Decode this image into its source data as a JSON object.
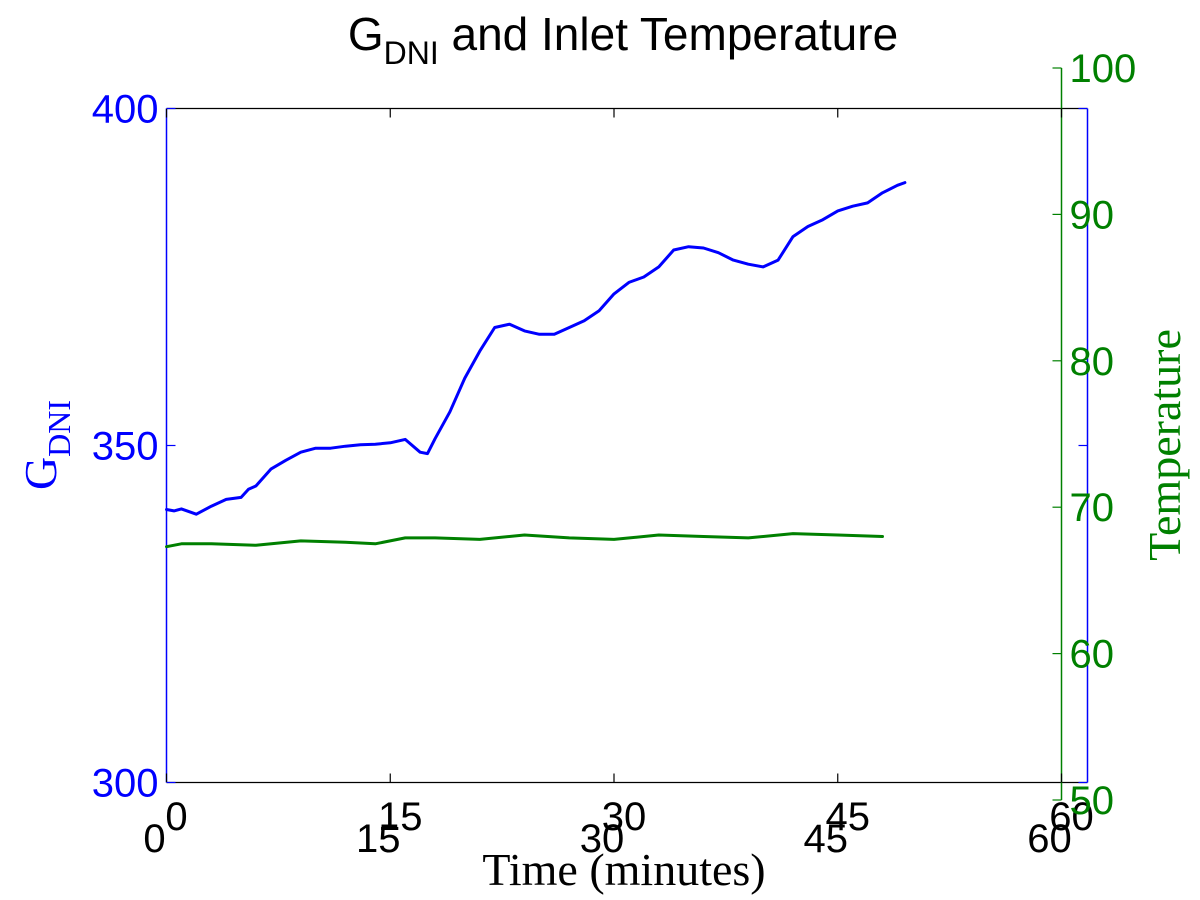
{
  "chart_data": {
    "type": "line",
    "title": {
      "main": "G",
      "sub": "DNI",
      "rest": " and Inlet Temperature"
    },
    "xlabel": "Time (minutes)",
    "ylabel_left": {
      "main": "G",
      "sub": "DNI"
    },
    "ylabel_right": "Temperature",
    "grid": false,
    "legend": "none",
    "x_axis_bottom": {
      "range": [
        0,
        60
      ],
      "ticks": [
        0,
        15,
        30,
        45,
        60
      ]
    },
    "x_axis_top_overlay": {
      "range": [
        0,
        60
      ],
      "ticks": [
        0,
        15,
        30,
        45,
        60
      ]
    },
    "y_axis_left": {
      "range": [
        300,
        400
      ],
      "ticks": [
        300,
        350,
        400
      ],
      "color": "#0000ff"
    },
    "y_axis_right": {
      "range": [
        50,
        100
      ],
      "ticks": [
        50,
        60,
        70,
        80,
        90,
        100
      ],
      "color": "#008000"
    },
    "series": [
      {
        "axis": "left",
        "color": "#0000ff",
        "x": [
          0,
          0.5,
          1,
          2,
          3,
          4,
          5,
          5.5,
          6,
          7,
          8,
          9,
          10,
          11,
          12,
          13,
          14,
          15,
          16,
          17,
          17.5,
          18,
          19,
          20,
          21,
          22,
          23,
          24,
          25,
          26,
          27,
          28,
          29,
          30,
          31,
          32,
          33,
          34,
          35,
          36,
          37,
          38,
          39,
          40,
          41,
          42,
          43,
          44,
          45,
          46,
          47,
          48,
          49,
          49.5
        ],
        "y": [
          340.5,
          340.3,
          340.6,
          339.8,
          341.0,
          342.0,
          342.3,
          343.5,
          344.0,
          346.5,
          347.8,
          349.0,
          349.6,
          349.6,
          349.9,
          350.1,
          350.2,
          350.4,
          350.9,
          349.0,
          348.8,
          351.0,
          355.0,
          360.0,
          364.0,
          367.5,
          368.0,
          367.0,
          366.5,
          366.5,
          367.5,
          368.5,
          370.0,
          372.5,
          374.2,
          375.0,
          376.5,
          379.0,
          379.5,
          379.3,
          378.6,
          377.5,
          376.9,
          376.5,
          377.5,
          381.0,
          382.5,
          383.5,
          384.8,
          385.5,
          386.0,
          387.5,
          388.6,
          389.0
        ]
      },
      {
        "axis": "right",
        "color": "#008000",
        "x": [
          0,
          1,
          3,
          6,
          9,
          12,
          14,
          16,
          18,
          21,
          24,
          27,
          30,
          33,
          36,
          39,
          42,
          45,
          48
        ],
        "y": [
          67.3,
          67.5,
          67.5,
          67.4,
          67.7,
          67.6,
          67.5,
          67.9,
          67.9,
          67.8,
          68.1,
          67.9,
          67.8,
          68.1,
          68.0,
          67.9,
          68.2,
          68.1,
          68.0
        ]
      }
    ]
  }
}
